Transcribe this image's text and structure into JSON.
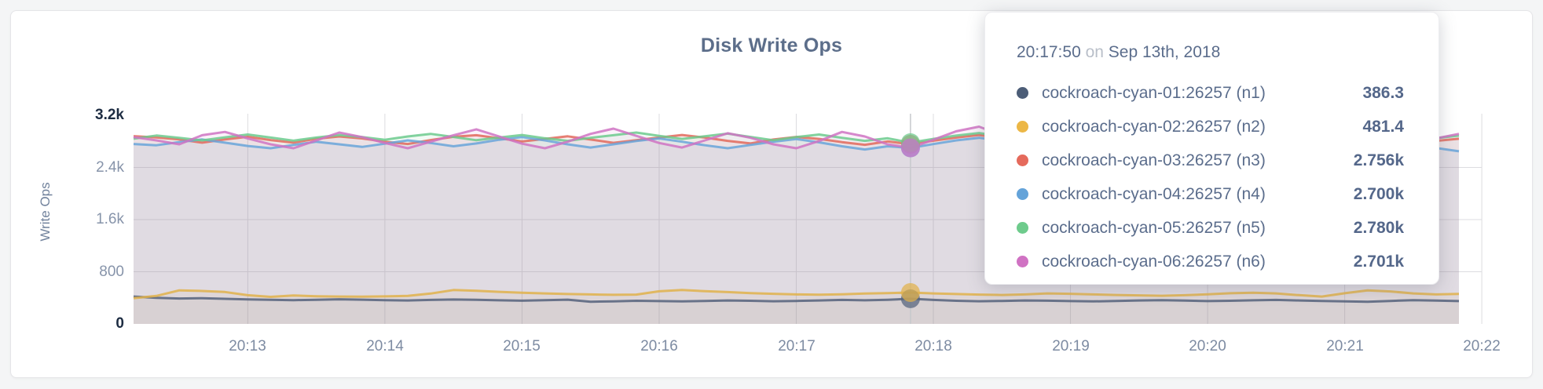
{
  "panel": {
    "background_color": "#f4f5f6",
    "card_color": "#ffffff"
  },
  "chart_data": {
    "type": "area",
    "title": "Disk Write Ops",
    "ylabel": "Write Ops",
    "ylim": [
      0,
      3200
    ],
    "grid": true,
    "x_start_label": "20:12:10",
    "x_step_seconds": 10,
    "x_tick_labels": [
      "20:13",
      "20:14",
      "20:15",
      "20:16",
      "20:17",
      "20:18",
      "20:19",
      "20:20",
      "20:21",
      "20:22"
    ],
    "y_ticks": [
      {
        "value": 0,
        "label": "0",
        "emphasis": true,
        "gridline": false
      },
      {
        "value": 800,
        "label": "800",
        "emphasis": false,
        "gridline": true
      },
      {
        "value": 1600,
        "label": "1.6k",
        "emphasis": false,
        "gridline": true
      },
      {
        "value": 2400,
        "label": "2.4k",
        "emphasis": false,
        "gridline": true
      },
      {
        "value": 3200,
        "label": "3.2k",
        "emphasis": true,
        "gridline": false
      }
    ],
    "series": [
      {
        "id": "n1",
        "name": "cockroach-cyan-01:26257 (n1)",
        "color": "#55627b",
        "fill_opacity": 0.06,
        "values": [
          420,
          400,
          390,
          395,
          385,
          375,
          370,
          365,
          370,
          378,
          372,
          365,
          360,
          368,
          374,
          370,
          362,
          356,
          365,
          372,
          340,
          345,
          355,
          350,
          345,
          352,
          360,
          355,
          348,
          352,
          360,
          368,
          362,
          370,
          386.3,
          368,
          355,
          348,
          352,
          360,
          356,
          350,
          345,
          352,
          360,
          365,
          358,
          350,
          355,
          362,
          368,
          360,
          352,
          345,
          340,
          352,
          365,
          358,
          350
        ]
      },
      {
        "id": "n2",
        "name": "cockroach-cyan-02:26257 (n2)",
        "color": "#e0b24b",
        "fill_opacity": 0.08,
        "values": [
          395,
          430,
          515,
          505,
          490,
          440,
          415,
          435,
          425,
          420,
          418,
          422,
          430,
          465,
          520,
          508,
          492,
          478,
          468,
          458,
          452,
          446,
          450,
          500,
          520,
          502,
          488,
          472,
          462,
          452,
          448,
          455,
          465,
          472,
          481.4,
          468,
          458,
          450,
          444,
          452,
          468,
          462,
          452,
          444,
          438,
          432,
          440,
          455,
          470,
          478,
          468,
          442,
          420,
          470,
          515,
          498,
          468,
          452,
          460
        ]
      },
      {
        "id": "n3",
        "name": "cockroach-cyan-03:26257 (n3)",
        "color": "#e2695c",
        "fill_opacity": 0.09,
        "values": [
          2880,
          2860,
          2830,
          2780,
          2830,
          2870,
          2820,
          2780,
          2840,
          2875,
          2845,
          2795,
          2760,
          2820,
          2870,
          2895,
          2848,
          2798,
          2838,
          2878,
          2828,
          2778,
          2818,
          2858,
          2898,
          2858,
          2808,
          2768,
          2828,
          2868,
          2838,
          2788,
          2748,
          2800,
          2756,
          2810,
          2858,
          2898,
          2848,
          2798,
          2838,
          2878,
          2828,
          2778,
          2818,
          2868,
          2898,
          2848,
          2798,
          2758,
          2818,
          2858,
          2828,
          2788,
          2838,
          2878,
          2848,
          2808,
          2840
        ]
      },
      {
        "id": "n4",
        "name": "cockroach-cyan-04:26257 (n4)",
        "color": "#68a4d9",
        "fill_opacity": 0.09,
        "values": [
          2760,
          2740,
          2790,
          2830,
          2780,
          2730,
          2695,
          2745,
          2795,
          2755,
          2715,
          2765,
          2815,
          2775,
          2725,
          2768,
          2825,
          2865,
          2815,
          2755,
          2705,
          2755,
          2805,
          2845,
          2795,
          2740,
          2695,
          2745,
          2795,
          2835,
          2785,
          2725,
          2675,
          2725,
          2700,
          2758,
          2815,
          2855,
          2805,
          2745,
          2698,
          2738,
          2788,
          2828,
          2775,
          2718,
          2668,
          2718,
          2775,
          2818,
          2768,
          2708,
          2658,
          2698,
          2748,
          2798,
          2755,
          2698,
          2648
        ]
      },
      {
        "id": "n5",
        "name": "cockroach-cyan-05:26257 (n5)",
        "color": "#6cca8d",
        "fill_opacity": 0.09,
        "values": [
          2840,
          2890,
          2855,
          2815,
          2862,
          2905,
          2858,
          2812,
          2858,
          2898,
          2865,
          2825,
          2875,
          2915,
          2868,
          2818,
          2858,
          2898,
          2848,
          2808,
          2855,
          2895,
          2935,
          2885,
          2838,
          2878,
          2918,
          2868,
          2818,
          2865,
          2905,
          2855,
          2808,
          2848,
          2780,
          2838,
          2888,
          2928,
          2878,
          2828,
          2868,
          2908,
          2858,
          2815,
          2858,
          2898,
          2938,
          2888,
          2828,
          2868,
          2908,
          2858,
          2818,
          2858,
          2898,
          2848,
          2798,
          2848,
          2888
        ]
      },
      {
        "id": "n6",
        "name": "cockroach-cyan-06:26257 (n6)",
        "color": "#cf73c3",
        "fill_opacity": 0.09,
        "values": [
          2865,
          2815,
          2755,
          2895,
          2945,
          2845,
          2755,
          2695,
          2815,
          2935,
          2865,
          2775,
          2695,
          2795,
          2895,
          2985,
          2875,
          2765,
          2695,
          2795,
          2915,
          2995,
          2885,
          2775,
          2705,
          2815,
          2925,
          2855,
          2755,
          2695,
          2805,
          2945,
          2875,
          2755,
          2701,
          2825,
          2955,
          3025,
          2895,
          2775,
          2695,
          2805,
          2925,
          2865,
          2755,
          2695,
          2815,
          2945,
          2875,
          2755,
          2695,
          2815,
          2935,
          3015,
          2895,
          2775,
          2705,
          2845,
          2915
        ]
      }
    ]
  },
  "hover": {
    "index": 34,
    "time": "20:17:50"
  },
  "tooltip": {
    "time": "20:17:50",
    "conjunction": "on",
    "date": "Sep 13th, 2018",
    "rows": [
      {
        "name": "cockroach-cyan-01:26257 (n1)",
        "value": "386.3",
        "color": "#4c5d77"
      },
      {
        "name": "cockroach-cyan-02:26257 (n2)",
        "value": "481.4",
        "color": "#ecb746"
      },
      {
        "name": "cockroach-cyan-03:26257 (n3)",
        "value": "2.756k",
        "color": "#e56a5c"
      },
      {
        "name": "cockroach-cyan-04:26257 (n4)",
        "value": "2.700k",
        "color": "#64a3d9"
      },
      {
        "name": "cockroach-cyan-05:26257 (n5)",
        "value": "2.780k",
        "color": "#6ecb8c"
      },
      {
        "name": "cockroach-cyan-06:26257 (n6)",
        "value": "2.701k",
        "color": "#d072c3"
      }
    ]
  }
}
